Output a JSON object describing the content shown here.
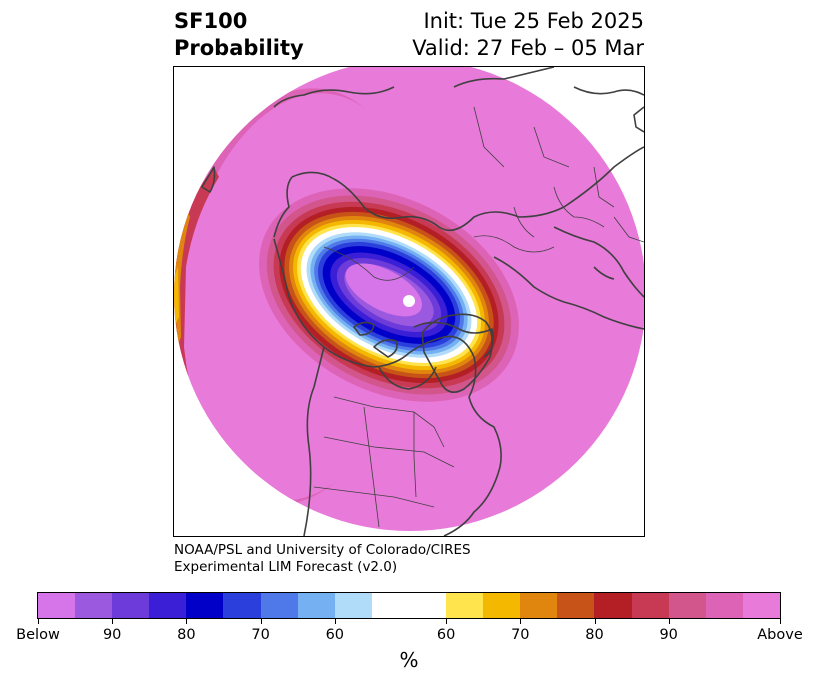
{
  "title": {
    "left_line1": "SF100",
    "left_line2": "Probability",
    "right_line1": "Init: Tue 25 Feb 2025",
    "right_line2": "Valid: 27 Feb – 05 Mar"
  },
  "credit": {
    "line1": "NOAA/PSL and University of Colorado/CIRES",
    "line2": "Experimental LIM Forecast (v2.0)"
  },
  "colorbar": {
    "unit": "%",
    "labels": [
      "Below",
      "90",
      "80",
      "70",
      "60",
      "60",
      "70",
      "80",
      "90",
      "Above"
    ],
    "colors": [
      "#d675ea",
      "#9b59e0",
      "#6c3bd9",
      "#3a1fd6",
      "#0000c8",
      "#2a3fdc",
      "#4f78e8",
      "#74b0f2",
      "#b0dcfa",
      "#ffffff",
      "#ffe44d",
      "#f5b800",
      "#e0860f",
      "#c75318",
      "#b31f24",
      "#c83953",
      "#d2558c",
      "#dd63b6",
      "#e87ada"
    ]
  },
  "map": {
    "projection": "north-polar stereographic",
    "background_fill": "#e87ada",
    "land_outline_color": "#404040"
  }
}
